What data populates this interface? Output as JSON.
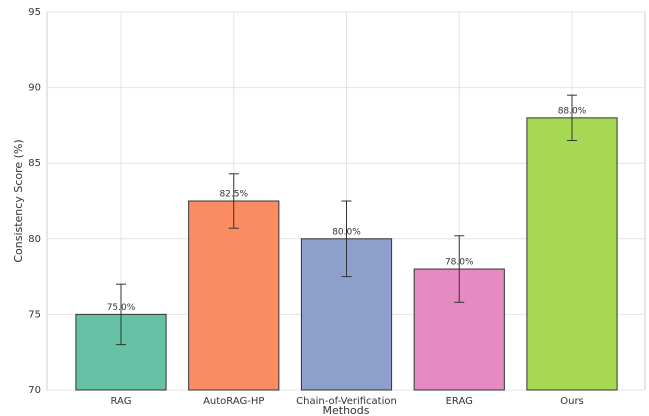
{
  "chart_data": {
    "type": "bar",
    "xlabel": "Methods",
    "ylabel": "Consistency Score (%)",
    "categories": [
      "RAG",
      "AutoRAG-HP",
      "Chain-of-Verification",
      "ERAG",
      "Ours"
    ],
    "values": [
      75.0,
      82.5,
      80.0,
      78.0,
      88.0
    ],
    "value_labels": [
      "75.0%",
      "82.5%",
      "80.0%",
      "78.0%",
      "88.0%"
    ],
    "errors": [
      2.0,
      1.8,
      2.5,
      2.2,
      1.5
    ],
    "colors": [
      "#66c2a5",
      "#fc8d62",
      "#8da0cb",
      "#e78ac3",
      "#a6d854"
    ],
    "ylim": [
      70,
      95
    ],
    "yticks": [
      70,
      75,
      80,
      85,
      90,
      95
    ],
    "grid": true
  }
}
